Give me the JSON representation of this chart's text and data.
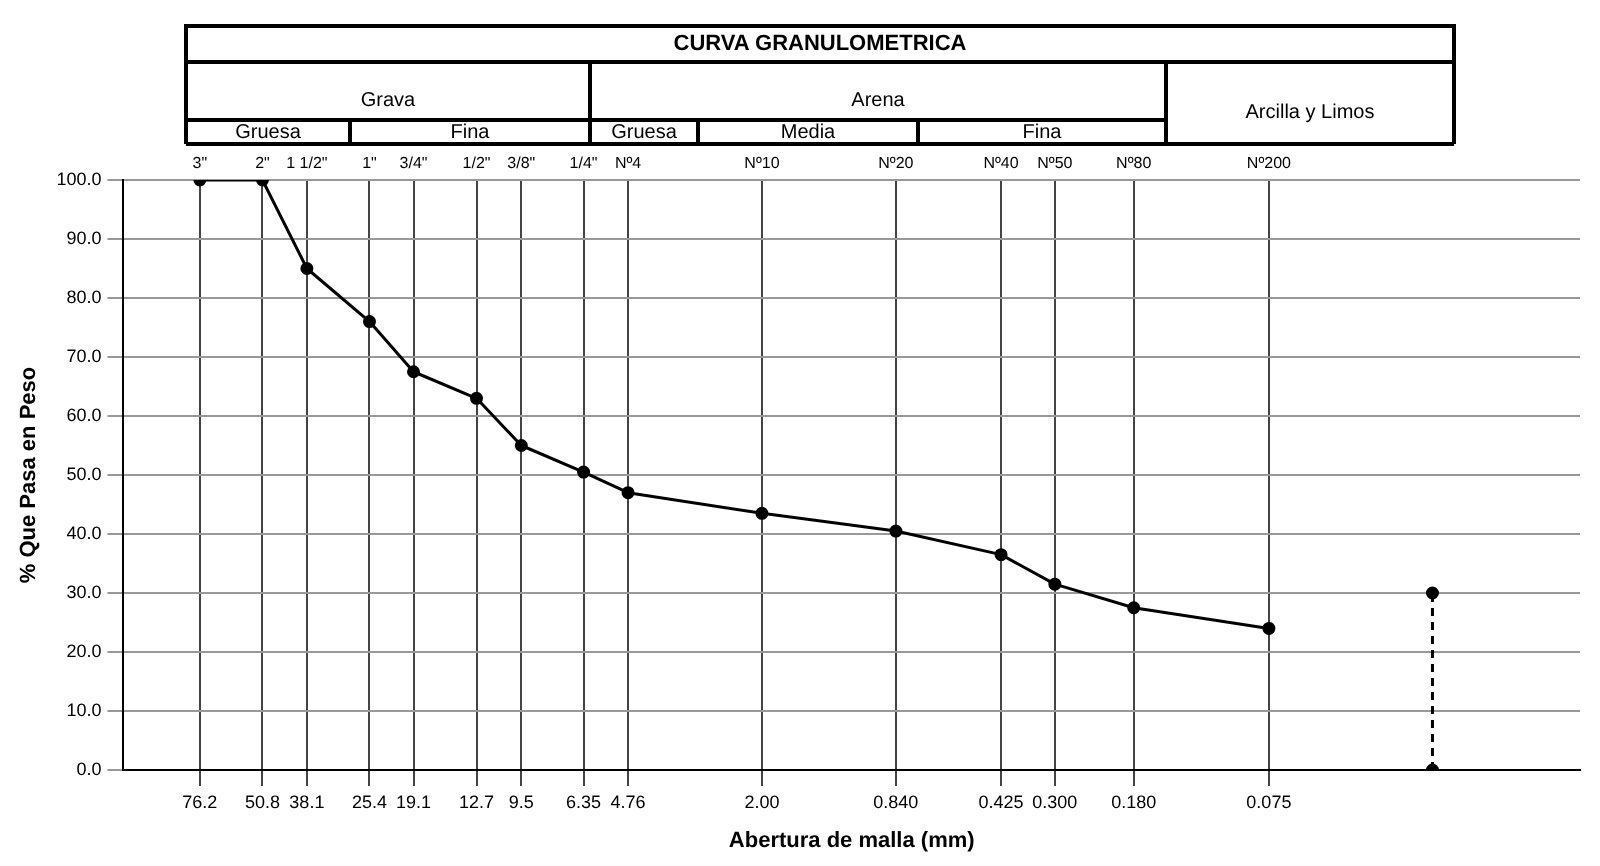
{
  "chart_data": {
    "type": "line",
    "title": "CURVA GRANULOMETRICA",
    "xlabel": "Abertura de malla (mm)",
    "ylabel": "% Que Pasa en Peso",
    "annotations": [
      "Grava",
      "Gruesa",
      "Fina",
      "Arena",
      "Gruesa",
      "Media",
      "Fina",
      "Arcilla y Limos",
      "3\"",
      "2\"",
      "1 1/2\"",
      "1\"",
      "3/4\"",
      "1/2\"",
      "3/8\"",
      "1/4\"",
      "Nº4",
      "Nº10",
      "Nº20",
      "Nº40",
      "Nº50",
      "Nº80",
      "Nº200"
    ],
    "log": "x",
    "xlim": [
      125,
      0.01
    ],
    "xticks": [
      76.2,
      50.8,
      38.1,
      25.4,
      19.1,
      12.7,
      9.5,
      6.35,
      4.76,
      {
        "value": 2,
        "label": "2.00"
      },
      {
        "value": 0.84,
        "label": "0.840"
      },
      0.425,
      {
        "value": 0.3,
        "label": "0.300"
      },
      {
        "value": 0.18,
        "label": "0.180"
      },
      0.075
    ],
    "ylim": [
      0,
      100
    ],
    "yticks": [
      {
        "value": 0,
        "label": "0.0"
      },
      {
        "value": 10,
        "label": "10.0"
      },
      {
        "value": 20,
        "label": "20.0"
      },
      {
        "value": 30,
        "label": "30.0"
      },
      {
        "value": 40,
        "label": "40.0"
      },
      {
        "value": 50,
        "label": "50.0"
      },
      {
        "value": 60,
        "label": "60.0"
      },
      {
        "value": 70,
        "label": "70.0"
      },
      {
        "value": 80,
        "label": "80.0"
      },
      {
        "value": 90,
        "label": "90.0"
      },
      {
        "value": 100,
        "label": "100.0"
      }
    ],
    "grid": true,
    "marker": "circle",
    "series": [
      {
        "color": "#000000",
        "x": [
          76.2,
          50.8,
          38.1,
          25.4,
          19.1,
          12.7,
          9.5,
          6.35,
          4.76,
          2,
          0.84,
          0.425,
          0.3,
          0.18,
          0.075
        ],
        "values": [
          100,
          100,
          85,
          76,
          67.5,
          63,
          55,
          50.5,
          47,
          43.5,
          40.5,
          36.5,
          31.5,
          27.5,
          24
        ]
      },
      {
        "color": "#000000",
        "x": [
          0.026,
          0.026
        ],
        "values": [
          0,
          30
        ],
        "line_style": "dashed"
      }
    ]
  }
}
